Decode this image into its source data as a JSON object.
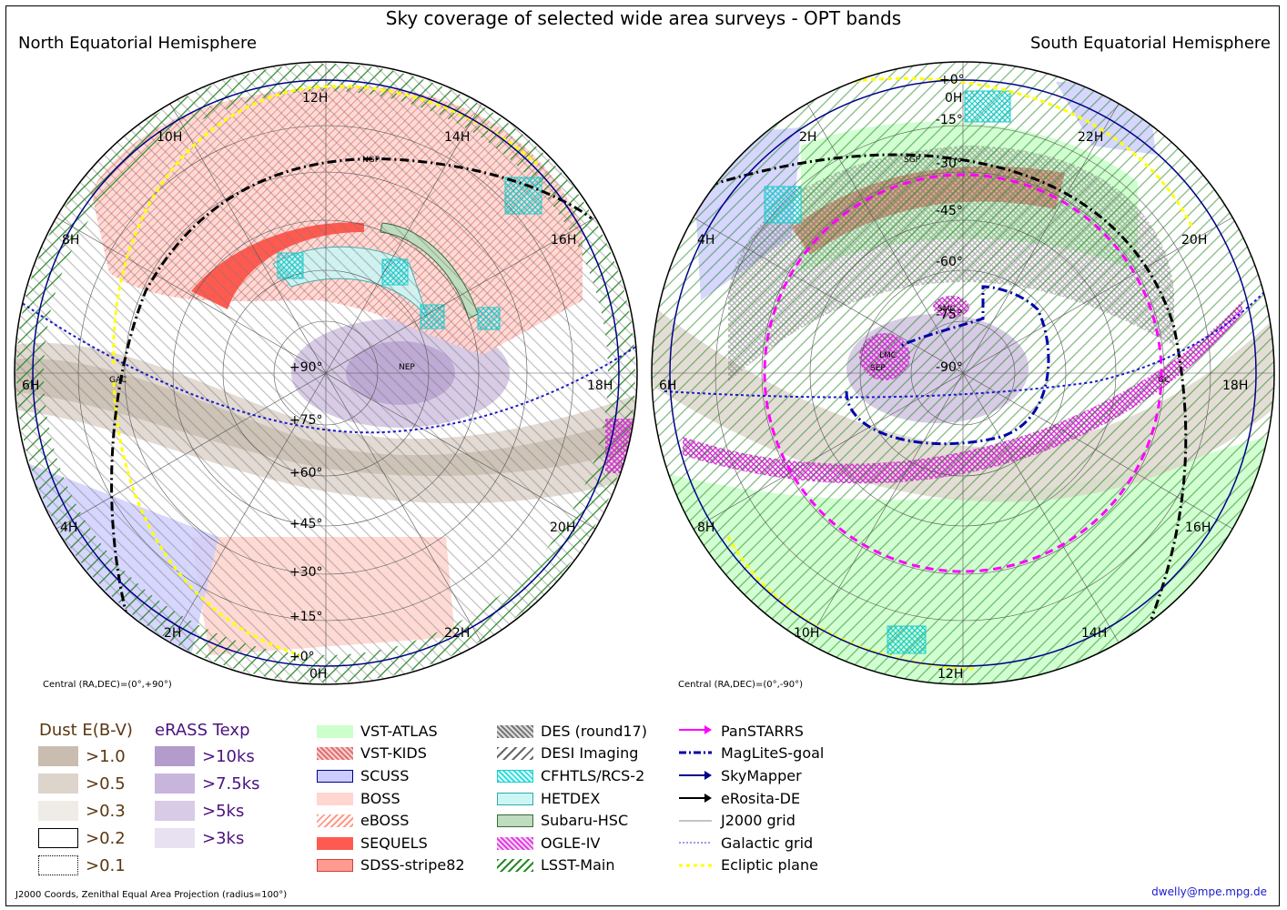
{
  "title": "Sky coverage of selected wide area surveys - OPT bands",
  "north": {
    "label": "North Equatorial Hemisphere",
    "central": "Central (RA,DEC)=(0°,+90°)",
    "ra_labels": [
      "12H",
      "10H",
      "14H",
      "8H",
      "16H",
      "6H",
      "18H",
      "4H",
      "20H",
      "2H",
      "22H",
      "0H"
    ],
    "dec_labels": [
      "+90°",
      "+75°",
      "+60°",
      "+45°",
      "+30°",
      "+15°",
      "+0°"
    ],
    "markers": [
      "NGP",
      "NEP",
      "GAC"
    ]
  },
  "south": {
    "label": "South Equatorial Hemisphere",
    "central": "Central (RA,DEC)=(0°,-90°)",
    "ra_labels": [
      "0H",
      "2H",
      "22H",
      "4H",
      "20H",
      "6H",
      "18H",
      "8H",
      "16H",
      "10H",
      "14H",
      "12H"
    ],
    "dec_labels": [
      "+0°",
      "-15°",
      "-30°",
      "-45°",
      "-60°",
      "-75°",
      "-90°"
    ],
    "markers": [
      "SGP",
      "SMC",
      "LMC",
      "SEP",
      "GC"
    ]
  },
  "legend": {
    "dust": {
      "heading": "Dust E(B-V)",
      "rows": [
        {
          "label": ">1.0",
          "color": "#c9bdb0"
        },
        {
          "label": ">0.5",
          "color": "#ddd4cb"
        },
        {
          "label": ">0.3",
          "color": "#efebe7"
        },
        {
          "label": ">0.2",
          "color": "#ffffff"
        },
        {
          "label": ">0.1",
          "color": "#ffffff"
        }
      ]
    },
    "erass": {
      "heading": "eRASS Texp",
      "rows": [
        {
          "label": ">10ks",
          "color": "#b39bcc"
        },
        {
          "label": ">7.5ks",
          "color": "#c7b5dc"
        },
        {
          "label": ">5ks",
          "color": "#d8cbe6"
        },
        {
          "label": ">3ks",
          "color": "#e8e1f1"
        }
      ]
    },
    "surveys_col1": [
      {
        "label": "VST-ATLAS",
        "color": "#ccffcc"
      },
      {
        "label": "VST-KIDS",
        "color": "#e07070"
      },
      {
        "label": "SCUSS",
        "color": "#ccccff"
      },
      {
        "label": "BOSS",
        "color": "#ffd6d0"
      },
      {
        "label": "eBOSS",
        "color": "#ff9a8a"
      },
      {
        "label": "SEQUELS",
        "color": "#ff5a50"
      },
      {
        "label": "SDSS-stripe82",
        "color": "#ff9a90"
      }
    ],
    "surveys_col2": [
      {
        "label": "DES (round17)",
        "color": "#777777"
      },
      {
        "label": "DESI Imaging",
        "color": "#666666"
      },
      {
        "label": "CFHTLS/RCS-2",
        "color": "#33dddd"
      },
      {
        "label": "HETDEX",
        "color": "#ccf6f6"
      },
      {
        "label": "Subaru-HSC",
        "color": "#bfdcbf"
      },
      {
        "label": "OGLE-IV",
        "color": "#e040e0"
      },
      {
        "label": "LSST-Main",
        "color": "#2a8a2a"
      }
    ],
    "lines_col3": [
      {
        "label": "PanSTARRS",
        "color": "#ff00ff"
      },
      {
        "label": "MagLiteS-goal",
        "color": "#0000aa"
      },
      {
        "label": "SkyMapper",
        "color": "#000088"
      },
      {
        "label": "eRosita-DE",
        "color": "#000000"
      },
      {
        "label": "J2000 grid",
        "color": "#888888"
      },
      {
        "label": "Galactic grid",
        "color": "#3333cc"
      },
      {
        "label": "Ecliptic plane",
        "color": "#ffff00"
      }
    ]
  },
  "footer": {
    "coords": "J2000 Coords, Zenithal Equal Area Projection (radius=100°)",
    "credit": "dwelly@mpe.mpg.de"
  }
}
